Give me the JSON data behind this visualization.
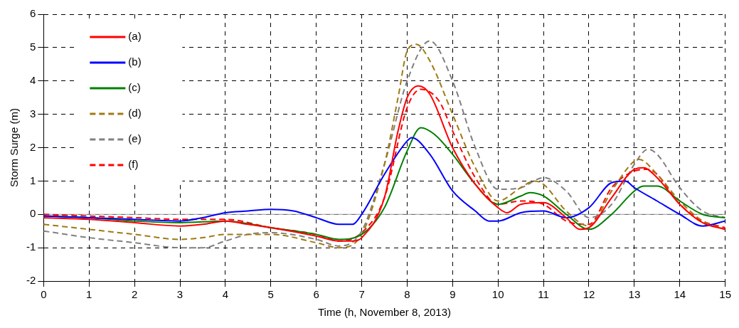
{
  "chart_data": {
    "type": "line",
    "xlabel": "Time (h, November 8, 2013)",
    "ylabel": "Storm Surge (m)",
    "xlim": [
      0,
      15
    ],
    "xticks": [
      0,
      1,
      2,
      3,
      4,
      5,
      6,
      7,
      8,
      9,
      10,
      11,
      12,
      13,
      14,
      15
    ],
    "ylim": [
      -2,
      6
    ],
    "yticks": [
      -2,
      -1,
      0,
      1,
      2,
      3,
      4,
      5,
      6
    ],
    "grid": true,
    "legend": "top left",
    "marker": "none",
    "ref_lines": [
      {
        "axis": "y",
        "value": 0,
        "color": "#999999",
        "line_style": "solid"
      }
    ],
    "series": [
      {
        "name": "(a)",
        "color": "#ff0000",
        "line_style": "solid",
        "x": [
          0,
          1,
          2,
          3,
          3.5,
          4,
          4.5,
          5,
          6,
          6.5,
          6.8,
          7,
          7.5,
          7.8,
          8,
          8.25,
          8.5,
          9,
          9.5,
          10,
          10.2,
          10.5,
          11,
          11.5,
          11.8,
          12,
          12.5,
          13,
          13.2,
          13.5,
          14,
          14.5,
          15
        ],
        "values": [
          -0.1,
          -0.15,
          -0.25,
          -0.35,
          -0.3,
          -0.2,
          -0.3,
          -0.4,
          -0.65,
          -0.8,
          -0.8,
          -0.7,
          0.5,
          2.5,
          3.5,
          3.85,
          3.6,
          2,
          0.9,
          0.2,
          0.05,
          0.3,
          0.35,
          -0.1,
          -0.45,
          -0.4,
          0.5,
          1.35,
          1.4,
          1.1,
          0.3,
          -0.25,
          -0.45
        ]
      },
      {
        "name": "(b)",
        "color": "#0000ff",
        "line_style": "solid",
        "x": [
          0,
          1,
          2,
          3,
          3.5,
          4,
          4.5,
          5,
          5.5,
          6,
          6.5,
          6.8,
          7,
          7.5,
          8,
          8.1,
          8.5,
          9,
          9.5,
          9.8,
          10,
          10.5,
          11,
          11.5,
          12,
          12.5,
          12.8,
          13,
          13.5,
          14,
          14.5,
          15
        ],
        "values": [
          -0.05,
          -0.1,
          -0.15,
          -0.2,
          -0.1,
          0.05,
          0.1,
          0.15,
          0.1,
          -0.1,
          -0.3,
          -0.3,
          0,
          1.2,
          2.2,
          2.3,
          1.8,
          0.7,
          0.1,
          -0.2,
          -0.2,
          0.05,
          0.1,
          -0.1,
          0.2,
          0.95,
          1,
          0.8,
          0.4,
          0,
          -0.35,
          -0.2
        ]
      },
      {
        "name": "(c)",
        "color": "#008000",
        "line_style": "solid",
        "x": [
          0,
          1,
          2,
          3,
          4,
          5,
          6,
          6.5,
          7,
          7.5,
          8,
          8.3,
          8.6,
          9,
          9.5,
          10,
          10.5,
          10.7,
          11,
          11.5,
          12,
          12.5,
          13,
          13.2,
          13.5,
          14,
          14.5,
          15
        ],
        "values": [
          -0.05,
          -0.1,
          -0.2,
          -0.25,
          -0.2,
          -0.4,
          -0.6,
          -0.75,
          -0.6,
          0.2,
          1.9,
          2.6,
          2.4,
          1.8,
          0.9,
          0.3,
          0.55,
          0.65,
          0.55,
          0,
          -0.45,
          0,
          0.7,
          0.85,
          0.85,
          0.4,
          0,
          -0.1
        ]
      },
      {
        "name": "(d)",
        "color": "#a07a10",
        "line_style": "dashed",
        "x": [
          0,
          1,
          2,
          3,
          3.5,
          4,
          5,
          6,
          6.5,
          7,
          7.5,
          7.8,
          8,
          8.2,
          8.5,
          9,
          9.5,
          10,
          10.5,
          10.8,
          11,
          11.5,
          12,
          12.5,
          13,
          13.1,
          13.5,
          14,
          14.5,
          15
        ],
        "values": [
          -0.3,
          -0.45,
          -0.6,
          -0.75,
          -0.7,
          -0.6,
          -0.6,
          -0.85,
          -1,
          -0.6,
          1.5,
          3.5,
          4.9,
          5.1,
          4.6,
          3,
          1.4,
          0.4,
          0.8,
          1,
          0.9,
          0.1,
          -0.35,
          0.7,
          1.6,
          1.65,
          1.2,
          0.4,
          -0.2,
          -0.45
        ]
      },
      {
        "name": "(e)",
        "color": "#808080",
        "line_style": "dashed",
        "x": [
          0,
          1,
          2,
          3,
          3.5,
          4,
          4.5,
          5,
          6,
          6.5,
          7,
          7.5,
          8,
          8.5,
          9,
          9.5,
          10,
          10.5,
          11,
          11.5,
          12,
          12.5,
          13,
          13.3,
          13.5,
          14,
          14.5,
          15
        ],
        "values": [
          -0.5,
          -0.7,
          -0.85,
          -1,
          -1,
          -0.8,
          -0.6,
          -0.55,
          -0.75,
          -0.95,
          -0.5,
          1.5,
          4,
          5.2,
          4,
          2,
          0.75,
          0.8,
          1.1,
          0.7,
          -0.1,
          0.3,
          1.5,
          1.95,
          1.8,
          0.8,
          0.1,
          -0.1
        ]
      },
      {
        "name": "(f)",
        "color": "#ff0000",
        "line_style": "dashed",
        "x": [
          0,
          1,
          2,
          3,
          4,
          5,
          6,
          6.5,
          7,
          7.5,
          8,
          8.3,
          8.7,
          9,
          9.5,
          10,
          10.5,
          11,
          11.5,
          12,
          12.5,
          13,
          13.3,
          13.5,
          14,
          14.5,
          15
        ],
        "values": [
          0,
          -0.05,
          -0.1,
          -0.15,
          -0.15,
          -0.4,
          -0.6,
          -0.8,
          -0.55,
          0.5,
          3.2,
          3.75,
          3.4,
          2.5,
          1.1,
          0.3,
          0.4,
          0.3,
          -0.2,
          -0.3,
          0.8,
          1.3,
          1.35,
          1.2,
          0.3,
          -0.2,
          -0.4
        ]
      }
    ]
  }
}
